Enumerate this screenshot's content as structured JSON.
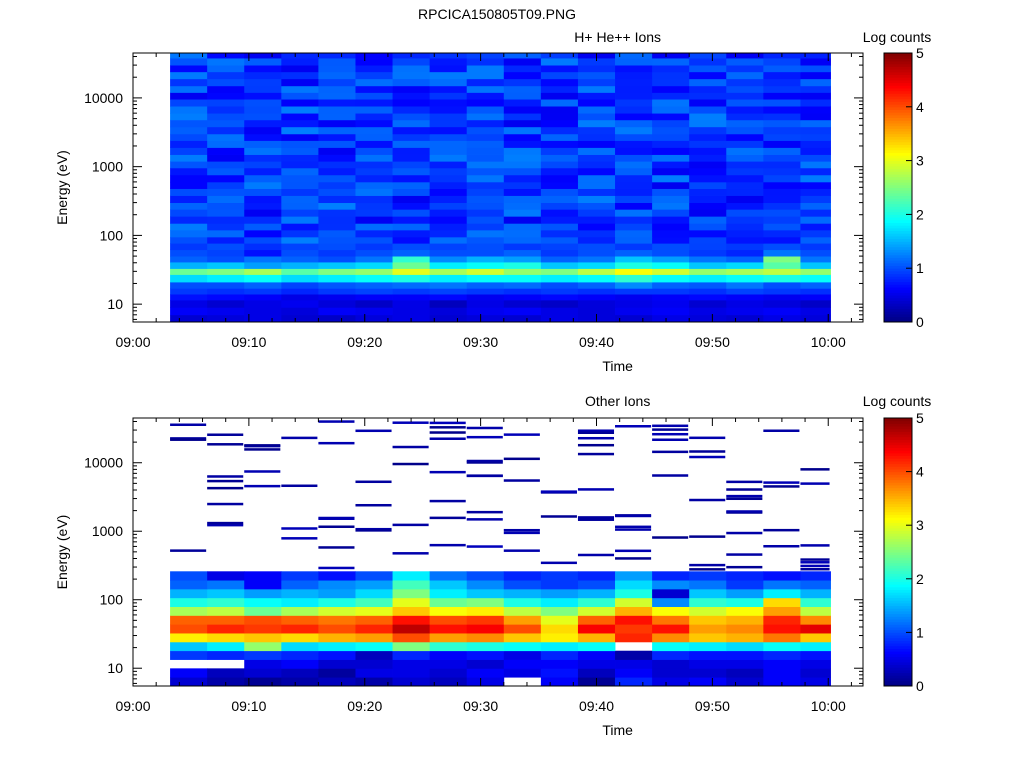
{
  "figure": {
    "title": "RPCICA150805T09.PNG",
    "colors": {
      "frame": "#000000",
      "background": "#ffffff",
      "empty_bin": "#ffffff"
    }
  },
  "chart_data": [
    {
      "type": "heatmap",
      "title": "H+ He++ Ions",
      "xlabel": "Time",
      "ylabel": "Energy (eV)",
      "x_ticks": [
        "09:00",
        "09:10",
        "09:20",
        "09:30",
        "09:40",
        "09:50",
        "10:00"
      ],
      "x_tick_values_min": [
        0,
        10,
        20,
        30,
        40,
        50,
        60
      ],
      "xlim_min": [
        0,
        63
      ],
      "y_scale": "log",
      "y_ticks": [
        "10",
        "100",
        "1000",
        "10000"
      ],
      "y_tick_values": [
        10,
        100,
        1000,
        10000
      ],
      "ylim": [
        5.5,
        45000
      ],
      "time_bins_min": [
        3.2,
        6.4,
        9.6,
        12.8,
        16.0,
        19.2,
        22.4,
        25.6,
        28.8,
        32.0,
        35.2,
        38.4,
        41.6,
        44.8,
        48.0,
        51.2,
        54.4,
        57.6,
        60.2
      ],
      "energy_bins_ev": [
        5.5,
        7,
        9,
        11.5,
        14,
        17,
        21,
        27,
        33,
        41,
        50,
        62,
        77,
        95,
        120,
        150,
        190,
        240,
        300,
        380,
        480,
        600,
        760,
        960,
        1200,
        1500,
        1900,
        2400,
        3000,
        3800,
        4800,
        6000,
        7600,
        9600,
        12000,
        15000,
        19000,
        24000,
        30000,
        38000,
        45000
      ],
      "rows_low_energy_to_high": [
        [
          0.4,
          0.45,
          0.5,
          0.4,
          0.35,
          0.45,
          0.5,
          0.4,
          0.45,
          0.4,
          0.5,
          0.45,
          0.4,
          0.5,
          0.45,
          0.4,
          0.5,
          0.45
        ],
        [
          0.6,
          0.55,
          0.5,
          0.45,
          0.6,
          0.55,
          0.5,
          0.45,
          0.55,
          0.6,
          0.5,
          0.45,
          0.55,
          0.6,
          0.5,
          0.55,
          0.6,
          0.5
        ],
        [
          0.5,
          0.4,
          0.5,
          0.55,
          0.45,
          0.35,
          0.5,
          0.3,
          0.5,
          0.4,
          0.35,
          0.45,
          0.5,
          0.55,
          0.4,
          0.5,
          0.45,
          0.35
        ],
        [
          0.7,
          0.65,
          0.6,
          0.5,
          0.55,
          0.6,
          0.6,
          0.65,
          0.55,
          0.6,
          0.65,
          0.6,
          0.55,
          0.6,
          0.65,
          0.6,
          0.55,
          0.6
        ],
        [
          0.9,
          0.85,
          0.9,
          0.8,
          0.9,
          0.95,
          0.9,
          0.95,
          0.9,
          0.85,
          0.9,
          0.85,
          0.9,
          0.9,
          0.85,
          0.95,
          0.9,
          0.85
        ],
        [
          1.0,
          1.0,
          1.1,
          0.95,
          1.05,
          1.1,
          1.15,
          1.2,
          1.1,
          1.15,
          1.0,
          1.1,
          1.3,
          1.1,
          1.05,
          1.2,
          1.0,
          1.1
        ],
        [
          1.7,
          1.8,
          1.9,
          1.7,
          1.8,
          1.9,
          2.0,
          1.8,
          1.9,
          1.9,
          1.8,
          1.9,
          2.1,
          1.9,
          1.8,
          1.9,
          2.0,
          1.9
        ],
        [
          2.4,
          2.5,
          2.7,
          2.3,
          2.5,
          2.6,
          3.0,
          2.7,
          2.9,
          2.6,
          2.5,
          2.8,
          3.1,
          2.9,
          2.6,
          2.7,
          2.8,
          2.6
        ],
        [
          1.5,
          1.6,
          1.4,
          1.5,
          1.6,
          1.7,
          2.4,
          1.8,
          1.9,
          2.0,
          1.6,
          1.7,
          2.0,
          1.9,
          1.6,
          1.7,
          2.3,
          1.6
        ],
        [
          1.1,
          1.0,
          1.2,
          1.1,
          1.0,
          1.2,
          2.1,
          1.3,
          1.5,
          1.4,
          1.1,
          1.2,
          1.6,
          1.4,
          1.2,
          1.1,
          2.5,
          1.2
        ],
        [
          1.0,
          0.95,
          0.7,
          1.0,
          0.9,
          1.0,
          1.1,
          1.0,
          1.0,
          1.1,
          0.9,
          1.0,
          1.1,
          1.0,
          0.9,
          0.8,
          1.2,
          1.0
        ],
        [
          0.9,
          1.0,
          0.85,
          0.95,
          1.0,
          0.9,
          1.0,
          0.95,
          1.0,
          0.9,
          0.95,
          1.0,
          0.9,
          1.0,
          0.95,
          0.9,
          1.0,
          0.9
        ]
      ],
      "high_energy_background": "blue noise, log counts ~0.5-1.2",
      "colorbar": {
        "label": "Log counts",
        "range": [
          0,
          5
        ],
        "ticks": [
          "0",
          "1",
          "2",
          "3",
          "4",
          "5"
        ]
      }
    },
    {
      "type": "heatmap",
      "title": "Other Ions",
      "xlabel": "Time",
      "ylabel": "Energy (eV)",
      "x_ticks": [
        "09:00",
        "09:10",
        "09:20",
        "09:30",
        "09:40",
        "09:50",
        "10:00"
      ],
      "x_tick_values_min": [
        0,
        10,
        20,
        30,
        40,
        50,
        60
      ],
      "xlim_min": [
        0,
        63
      ],
      "y_scale": "log",
      "y_ticks": [
        "10",
        "100",
        "1000",
        "10000"
      ],
      "y_tick_values": [
        10,
        100,
        1000,
        10000
      ],
      "ylim": [
        5.5,
        45000
      ],
      "time_bins_min": [
        3.2,
        6.4,
        9.6,
        12.8,
        16.0,
        19.2,
        22.4,
        25.6,
        28.8,
        32.0,
        35.2,
        38.4,
        41.6,
        44.8,
        48.0,
        51.2,
        54.4,
        57.6,
        60.2
      ],
      "dense_energy_range_ev": [
        5.5,
        260
      ],
      "rows_low_energy_to_high": [
        [
          0.4,
          0.2,
          0.1,
          0.2,
          0.3,
          0.2,
          0.4,
          0.3,
          0.5,
          null,
          0.6,
          0.1,
          0.8,
          0.5,
          0.6,
          0.4,
          0.6,
          0.5
        ],
        [
          0.6,
          0.3,
          0.4,
          0.3,
          0.15,
          0.5,
          0.5,
          0.4,
          0.6,
          0.5,
          0.7,
          0.3,
          0.6,
          0.4,
          0.4,
          0.3,
          0.6,
          0.4
        ],
        [
          null,
          null,
          0.5,
          0.6,
          0.4,
          0.4,
          0.5,
          0.5,
          0.4,
          0.6,
          0.6,
          0.5,
          0.5,
          0.4,
          0.5,
          0.5,
          0.6,
          0.5
        ],
        [
          0.9,
          0.8,
          0.9,
          0.8,
          0.7,
          0.3,
          0.8,
          0.6,
          0.7,
          0.5,
          0.8,
          0.6,
          0.2,
          0.8,
          0.7,
          0.7,
          0.8,
          0.7
        ],
        [
          1.6,
          1.8,
          2.6,
          1.7,
          1.8,
          1.9,
          2.5,
          2.1,
          2.0,
          1.9,
          1.8,
          1.9,
          null,
          1.9,
          1.8,
          1.7,
          1.9,
          1.8
        ],
        [
          3.2,
          3.3,
          3.4,
          3.3,
          3.5,
          3.6,
          4.0,
          3.6,
          3.7,
          3.4,
          3.2,
          3.5,
          4.2,
          3.7,
          3.4,
          3.5,
          3.8,
          3.4
        ],
        [
          4.0,
          4.2,
          4.1,
          4.2,
          4.0,
          4.2,
          4.7,
          4.3,
          4.4,
          4.0,
          3.3,
          4.4,
          4.1,
          4.3,
          3.6,
          3.7,
          4.3,
          4.5
        ],
        [
          3.9,
          3.9,
          4.0,
          3.9,
          3.8,
          3.9,
          4.3,
          4.0,
          4.1,
          3.6,
          3.0,
          3.9,
          4.3,
          3.8,
          3.4,
          3.5,
          4.2,
          3.7
        ],
        [
          2.7,
          2.8,
          2.4,
          2.7,
          2.9,
          3.0,
          3.4,
          3.1,
          3.2,
          2.8,
          2.5,
          2.9,
          3.5,
          3.1,
          2.9,
          3.1,
          3.6,
          2.8
        ],
        [
          2.0,
          2.1,
          1.9,
          1.8,
          2.0,
          2.2,
          3.0,
          2.4,
          2.5,
          2.0,
          1.8,
          2.1,
          2.9,
          1.3,
          2.1,
          2.0,
          3.3,
          2.1
        ],
        [
          1.5,
          1.6,
          1.4,
          1.5,
          1.4,
          1.7,
          2.5,
          1.8,
          1.6,
          1.5,
          1.4,
          1.5,
          2.0,
          0.4,
          1.6,
          1.4,
          1.8,
          1.5
        ],
        [
          1.1,
          1.2,
          0.6,
          1.1,
          1.3,
          1.4,
          2.2,
          1.6,
          1.3,
          1.0,
          0.9,
          1.0,
          1.7,
          1.3,
          1.2,
          0.9,
          1.2,
          1.1
        ],
        [
          1.0,
          0.5,
          0.6,
          0.9,
          0.7,
          1.0,
          1.8,
          1.2,
          1.0,
          0.8,
          0.9,
          0.8,
          1.4,
          0.8,
          0.9,
          0.8,
          0.7,
          0.8
        ]
      ],
      "high_energy_lines_count_range": [
        0.05,
        0.3
      ],
      "colorbar": {
        "label": "Log counts",
        "range": [
          0,
          5
        ],
        "ticks": [
          "0",
          "1",
          "2",
          "3",
          "4",
          "5"
        ]
      }
    }
  ]
}
